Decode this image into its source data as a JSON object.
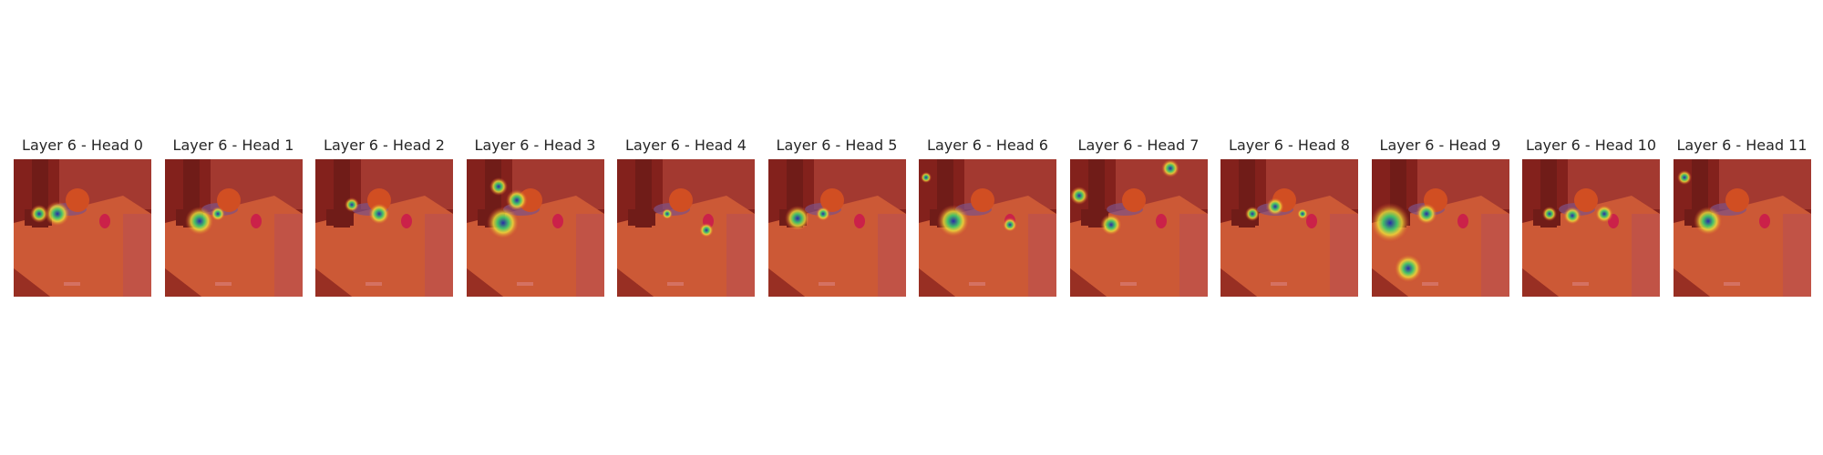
{
  "figure": {
    "panels": [
      {
        "title": "Layer 6 - Head 0",
        "alt": "attention heatmap overlay, layer 6 head 0"
      },
      {
        "title": "Layer 6 - Head 1",
        "alt": "attention heatmap overlay, layer 6 head 1"
      },
      {
        "title": "Layer 6 - Head 2",
        "alt": "attention heatmap overlay, layer 6 head 2"
      },
      {
        "title": "Layer 6 - Head 3",
        "alt": "attention heatmap overlay, layer 6 head 3"
      },
      {
        "title": "Layer 6 - Head 4",
        "alt": "attention heatmap overlay, layer 6 head 4"
      },
      {
        "title": "Layer 6 - Head 5",
        "alt": "attention heatmap overlay, layer 6 head 5"
      },
      {
        "title": "Layer 6 - Head 6",
        "alt": "attention heatmap overlay, layer 6 head 6"
      },
      {
        "title": "Layer 6 - Head 7",
        "alt": "attention heatmap overlay, layer 6 head 7"
      },
      {
        "title": "Layer 6 - Head 8",
        "alt": "attention heatmap overlay, layer 6 head 8"
      },
      {
        "title": "Layer 6 - Head 9",
        "alt": "attention heatmap overlay, layer 6 head 9"
      },
      {
        "title": "Layer 6 - Head 10",
        "alt": "attention heatmap overlay, layer 6 head 10"
      },
      {
        "title": "Layer 6 - Head 11",
        "alt": "attention heatmap overlay, layer 6 head 11"
      }
    ]
  },
  "colors": {
    "title_text": "#262626",
    "overlay_red": "#d23a2c",
    "overlay_dark": "#5a1414",
    "overlay_wood": "#c96a3c",
    "hot_blue": "#2a2aa8",
    "hot_yellow": "#f0e23a",
    "hot_green": "#42c86a",
    "robot_dark": "#3c0d0f",
    "pot_orange": "#d25a1e",
    "plate_blue": "#5060b8",
    "cup_magenta": "#c8145a"
  }
}
